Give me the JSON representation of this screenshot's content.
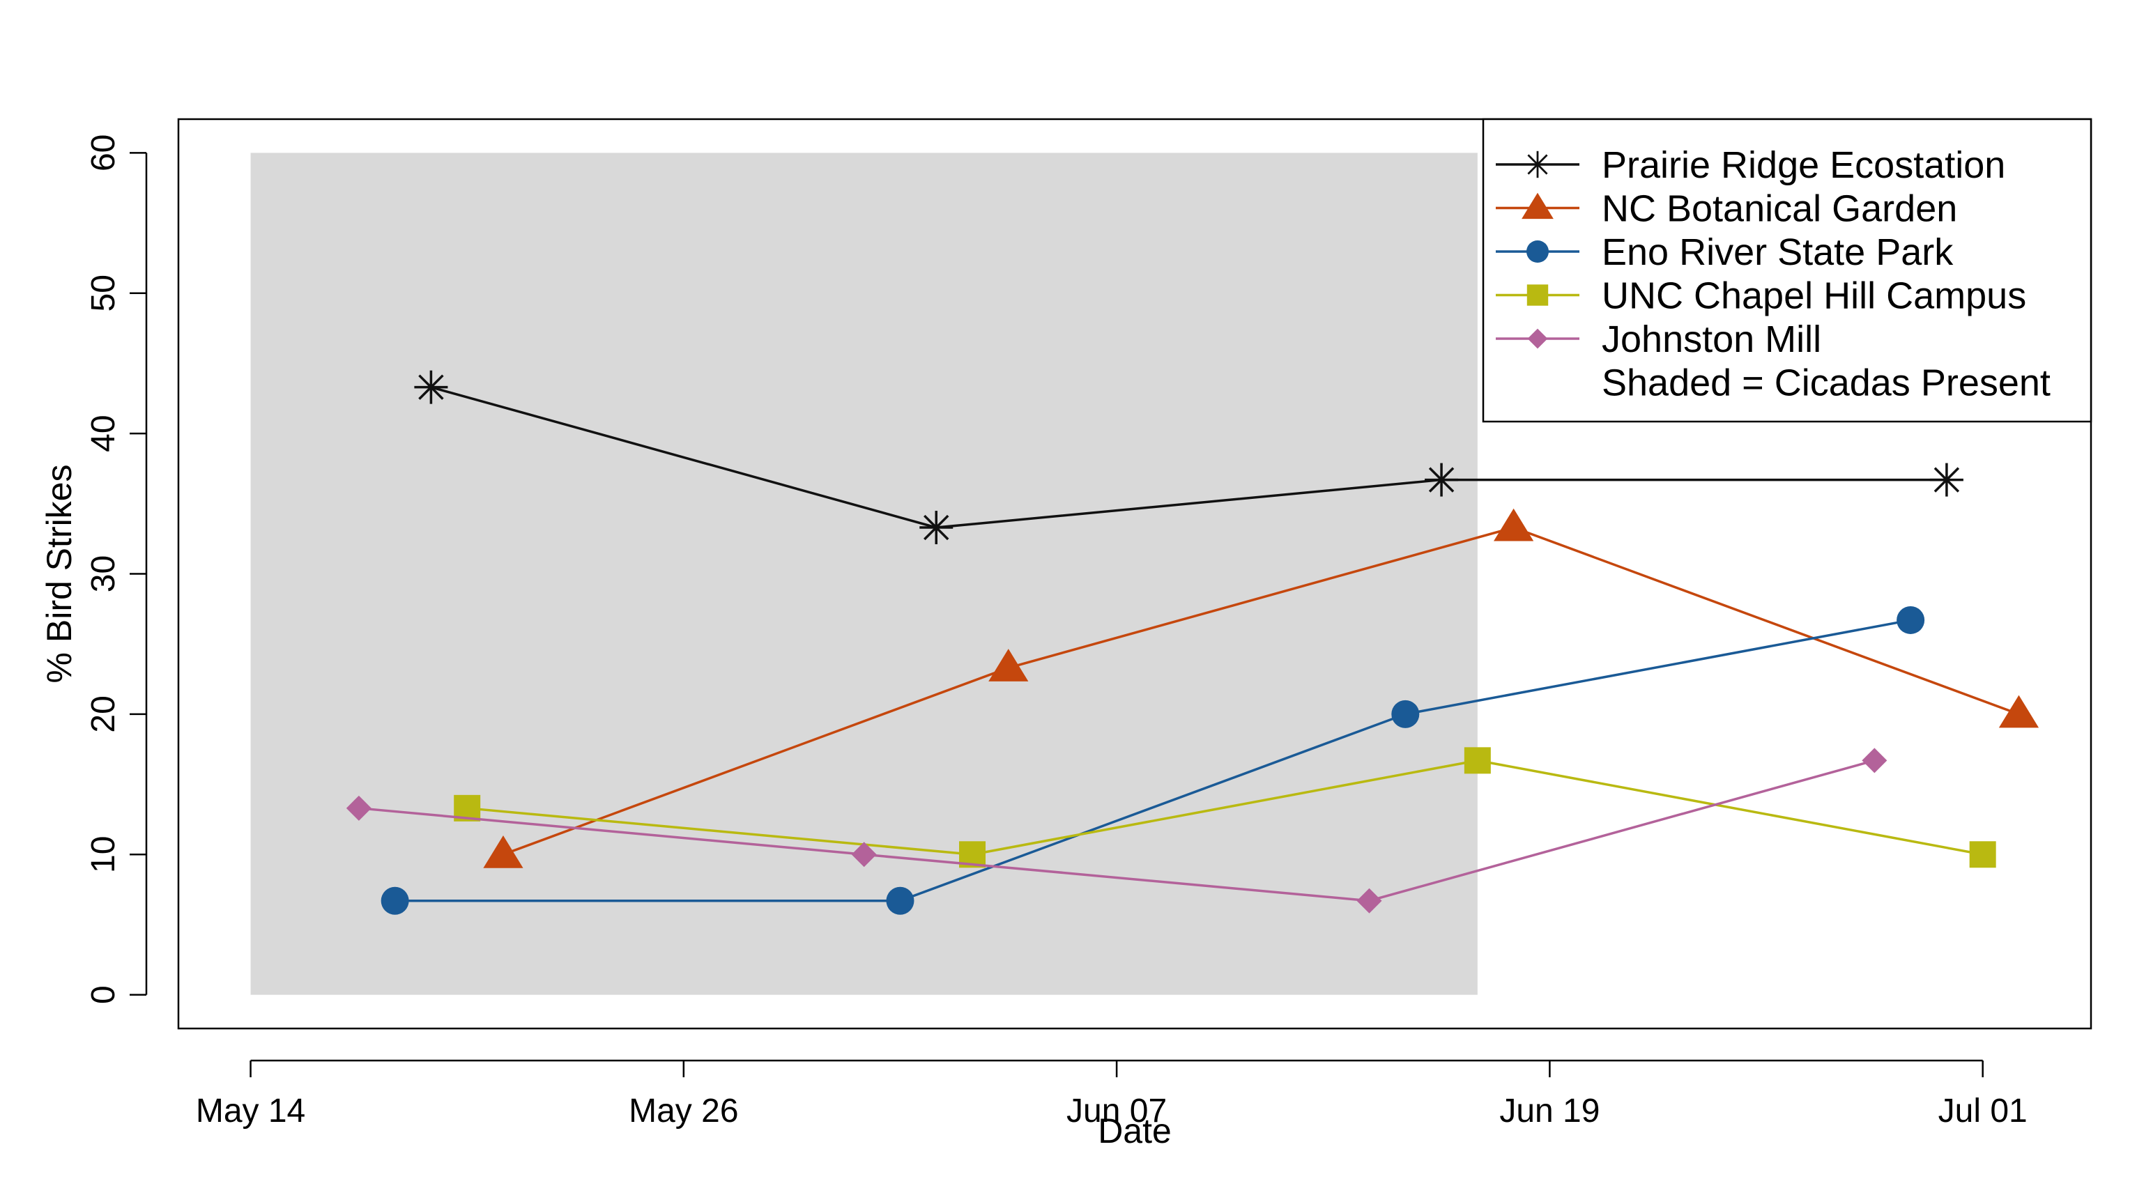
{
  "chart_data": {
    "type": "line",
    "xlabel": "Date",
    "ylabel": "% Bird Strikes",
    "x_ticks": [
      "May 14",
      "May 26",
      "Jun 07",
      "Jun 19",
      "Jul 01"
    ],
    "y_ticks": [
      "0",
      "10",
      "20",
      "30",
      "40",
      "50",
      "60"
    ],
    "xlim": [
      "2013-05-12",
      "2013-07-04"
    ],
    "ylim": [
      -2.4,
      62.4
    ],
    "grid": false,
    "legend_position": "top-right",
    "shaded_region": {
      "x_start": "2013-05-14",
      "x_end": "2013-06-17",
      "y_start": 0,
      "y_end": 60,
      "color": "#d9d9d9",
      "label": "Shaded = Cicadas Present"
    },
    "series": [
      {
        "name": "Prairie Ridge Ecostation",
        "marker": "asterisk",
        "color": "#111111",
        "x": [
          "2013-05-19",
          "2013-06-02",
          "2013-06-16",
          "2013-06-30"
        ],
        "y": [
          43.3,
          33.3,
          36.7,
          36.7
        ]
      },
      {
        "name": "NC Botanical Garden",
        "marker": "triangle",
        "color": "#c5470d",
        "x": [
          "2013-05-21",
          "2013-06-04",
          "2013-06-18",
          "2013-07-02"
        ],
        "y": [
          10,
          23.3,
          33.3,
          20
        ]
      },
      {
        "name": "Eno River State Park",
        "marker": "circle",
        "color": "#1a5a96",
        "x": [
          "2013-05-18",
          "2013-06-01",
          "2013-06-15",
          "2013-06-29"
        ],
        "y": [
          6.7,
          6.7,
          20,
          26.7
        ]
      },
      {
        "name": "UNC Chapel Hill Campus",
        "marker": "square",
        "color": "#b9b911",
        "x": [
          "2013-05-20",
          "2013-06-03",
          "2013-06-17",
          "2013-07-01"
        ],
        "y": [
          13.3,
          10,
          16.7,
          10
        ]
      },
      {
        "name": "Johnston Mill",
        "marker": "diamond",
        "color": "#b3629a",
        "x": [
          "2013-05-17",
          "2013-05-31",
          "2013-06-14",
          "2013-06-28"
        ],
        "y": [
          13.3,
          10,
          6.7,
          16.7
        ]
      }
    ]
  }
}
